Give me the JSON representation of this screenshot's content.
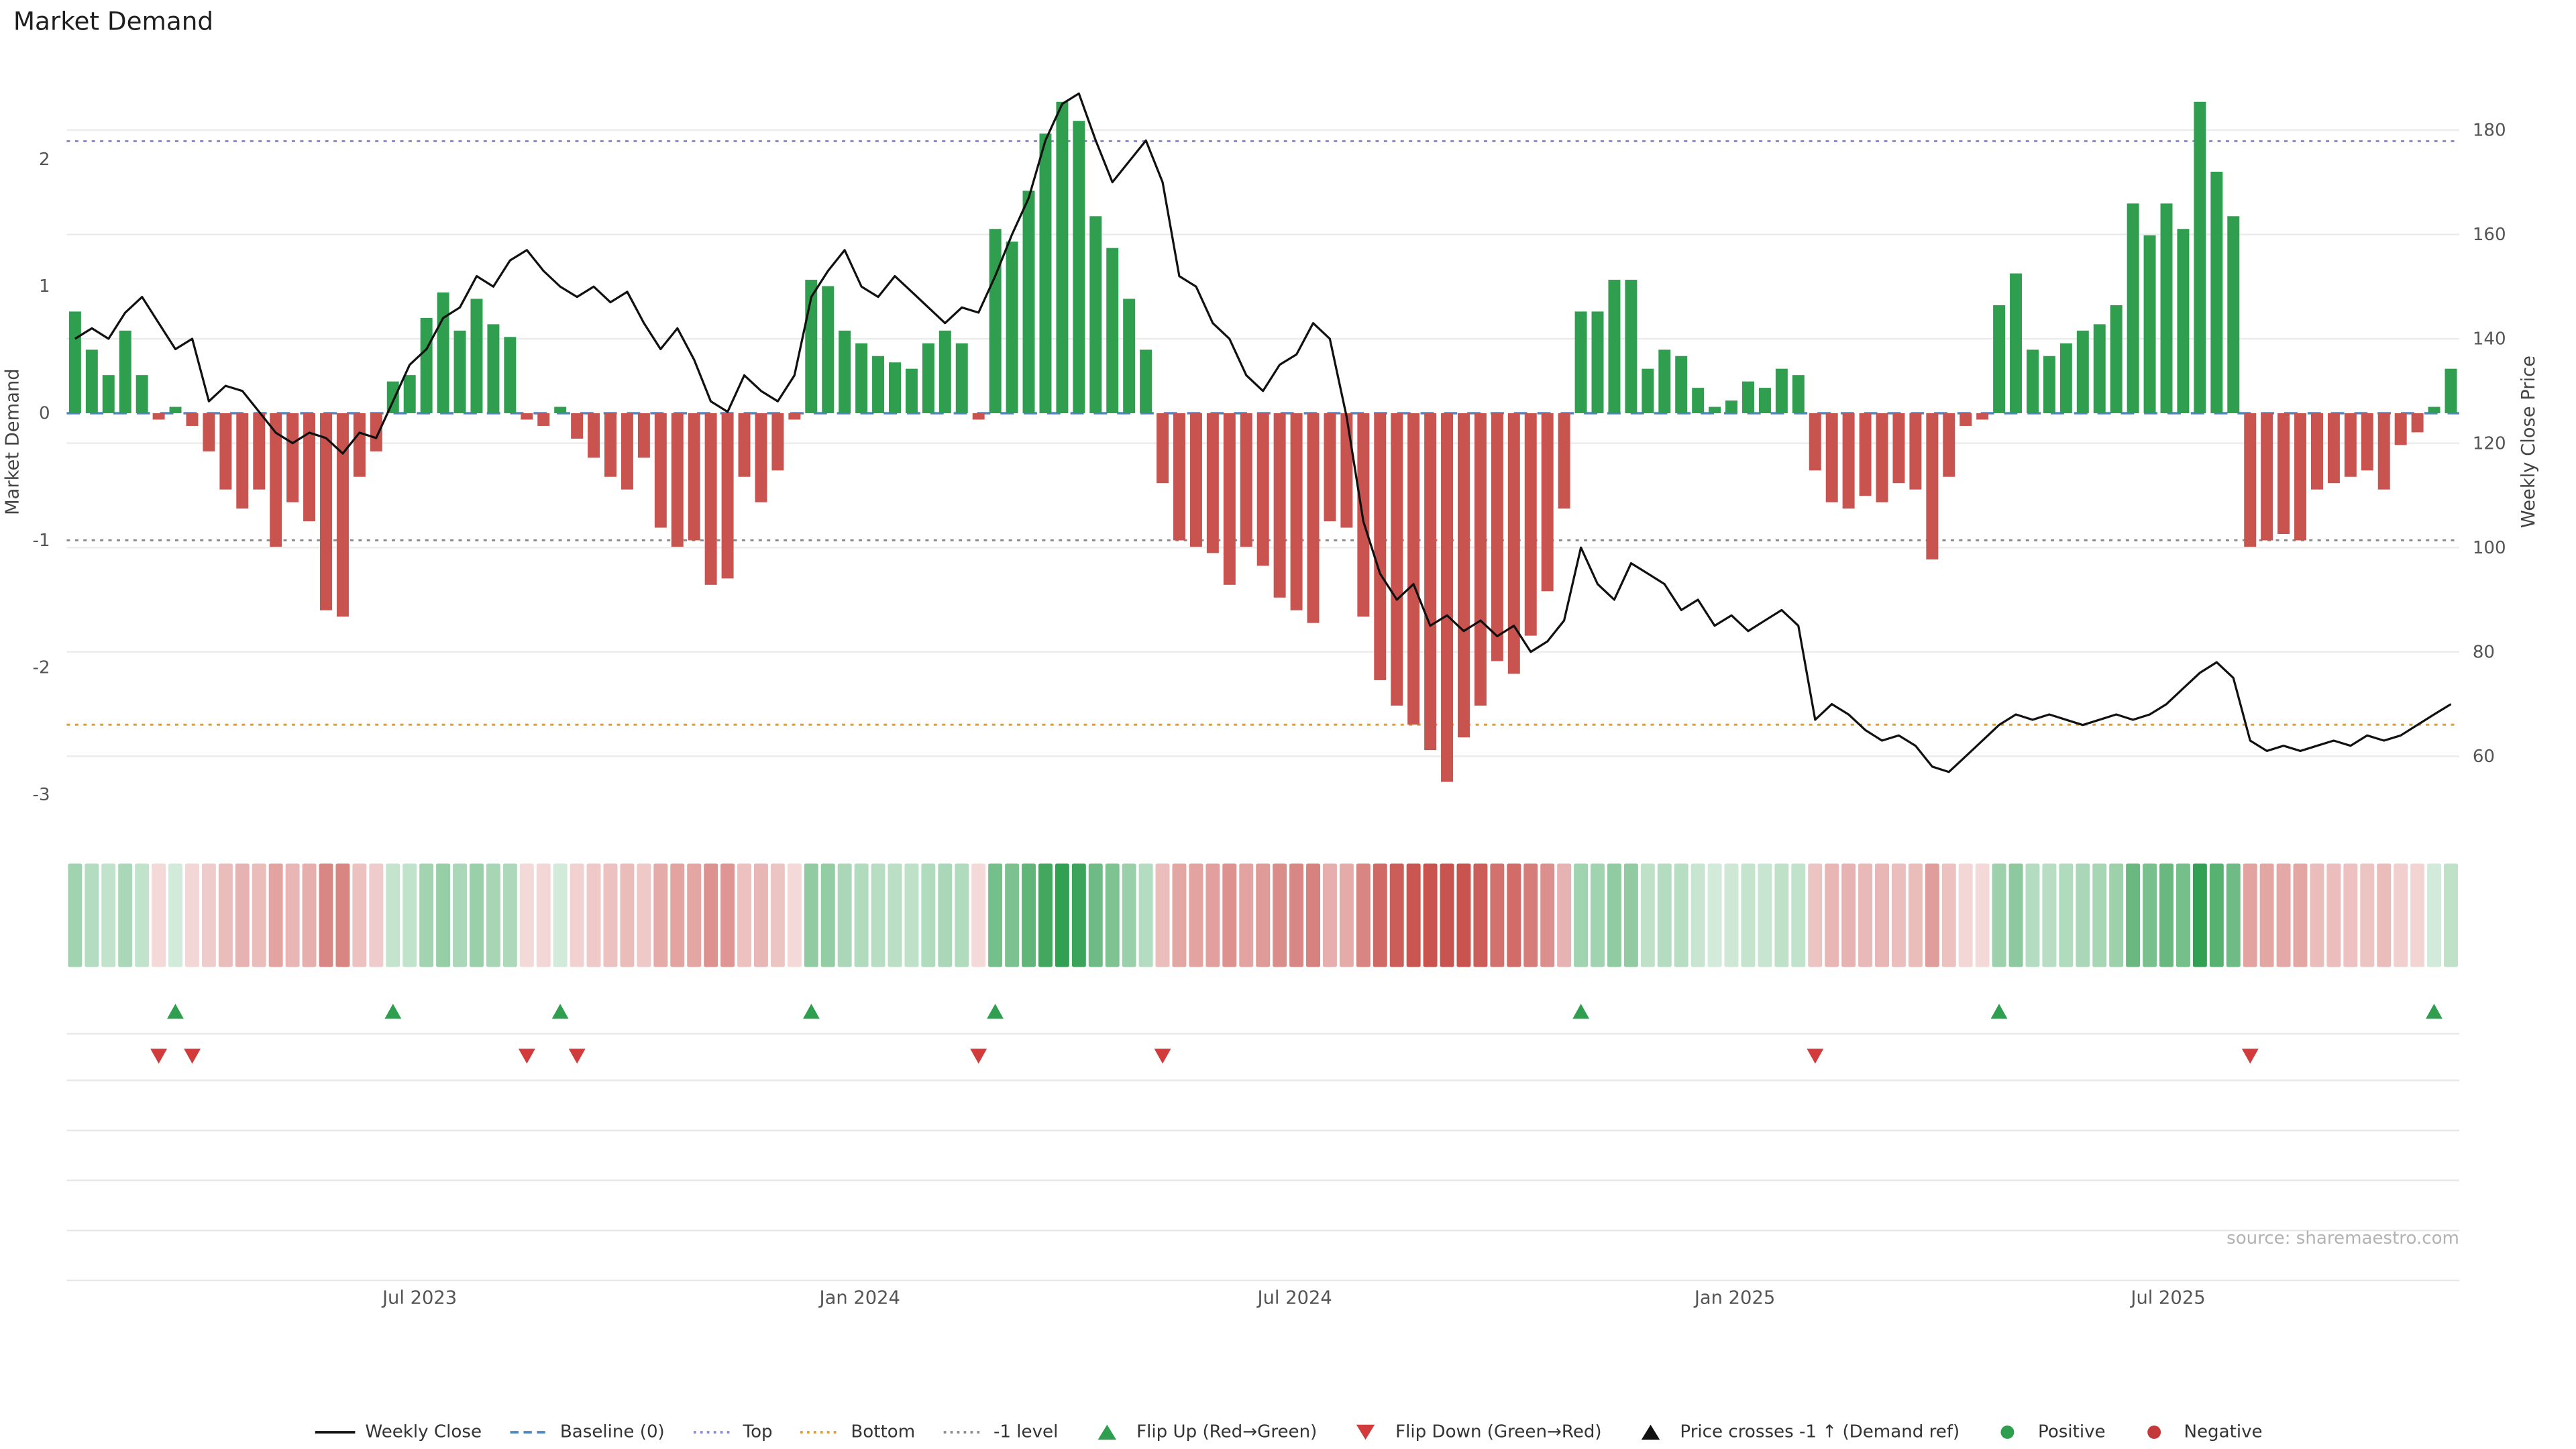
{
  "title": "Market Demand",
  "source": "source: sharemaestro.com",
  "colors": {
    "positive": "#2f9e4f",
    "negative": "#c9534f",
    "price_line": "#111111",
    "baseline": "#4f87c0",
    "top_line": "#8a8ad6",
    "bottom_line": "#e39b2d",
    "minus1_line": "#8c8c8c",
    "grid": "#ececec",
    "tick_text": "#555555",
    "source_text": "#b3b3b3",
    "flip_down": "#d13b3b",
    "negative_dot": "#c23a3a"
  },
  "chart_data": {
    "type": "bar",
    "description": "Weekly market-demand oscillator bars (left axis) with weekly close price line (right axis), sign/magnitude heatmap strip and flip markers",
    "title": "Market Demand",
    "start_date": "2023-02-03",
    "frequency": "weekly",
    "series": [
      {
        "name": "Market Demand",
        "type": "bar",
        "axis": "left",
        "values": [
          0.8,
          0.5,
          0.3,
          0.65,
          0.3,
          -0.05,
          0.05,
          -0.1,
          -0.3,
          -0.6,
          -0.75,
          -0.6,
          -1.05,
          -0.7,
          -0.85,
          -1.55,
          -1.6,
          -0.5,
          -0.3,
          0.25,
          0.3,
          0.75,
          0.95,
          0.65,
          0.9,
          0.7,
          0.6,
          -0.05,
          -0.1,
          0.05,
          -0.2,
          -0.35,
          -0.5,
          -0.6,
          -0.35,
          -0.9,
          -1.05,
          -1.0,
          -1.35,
          -1.3,
          -0.5,
          -0.7,
          -0.45,
          -0.05,
          1.05,
          1.0,
          0.65,
          0.55,
          0.45,
          0.4,
          0.35,
          0.55,
          0.65,
          0.55,
          -0.05,
          1.45,
          1.35,
          1.75,
          2.2,
          2.45,
          2.3,
          1.55,
          1.3,
          0.9,
          0.5,
          -0.55,
          -1.0,
          -1.05,
          -1.1,
          -1.35,
          -1.05,
          -1.2,
          -1.45,
          -1.55,
          -1.65,
          -0.85,
          -0.9,
          -1.6,
          -2.1,
          -2.3,
          -2.45,
          -2.65,
          -2.9,
          -2.55,
          -2.3,
          -1.95,
          -2.05,
          -1.75,
          -1.4,
          -0.75,
          0.8,
          0.8,
          1.05,
          1.05,
          0.35,
          0.5,
          0.45,
          0.2,
          0.05,
          0.1,
          0.25,
          0.2,
          0.35,
          0.3,
          -0.45,
          -0.7,
          -0.75,
          -0.65,
          -0.7,
          -0.55,
          -0.6,
          -1.15,
          -0.5,
          -0.1,
          -0.05,
          0.85,
          1.1,
          0.5,
          0.45,
          0.55,
          0.65,
          0.7,
          0.85,
          1.65,
          1.4,
          1.65,
          1.45,
          2.45,
          1.9,
          1.55,
          -1.05,
          -1.0,
          -0.95,
          -1.0,
          -0.6,
          -0.55,
          -0.5,
          -0.45,
          -0.6,
          -0.25,
          -0.15,
          0.05,
          0.35
        ]
      },
      {
        "name": "Weekly Close",
        "type": "line",
        "axis": "right",
        "values": [
          140,
          142,
          140,
          145,
          148,
          143,
          138,
          140,
          128,
          131,
          130,
          126,
          122,
          120,
          122,
          121,
          118,
          122,
          121,
          128,
          135,
          138,
          144,
          146,
          152,
          150,
          155,
          157,
          153,
          150,
          148,
          150,
          147,
          149,
          143,
          138,
          142,
          136,
          128,
          126,
          133,
          130,
          128,
          133,
          148,
          153,
          157,
          150,
          148,
          152,
          149,
          146,
          143,
          146,
          145,
          152,
          160,
          167,
          178,
          185,
          187,
          178,
          170,
          174,
          178,
          170,
          152,
          150,
          143,
          140,
          133,
          130,
          135,
          137,
          143,
          140,
          125,
          105,
          95,
          90,
          93,
          85,
          87,
          84,
          86,
          83,
          85,
          80,
          82,
          86,
          100,
          93,
          90,
          97,
          95,
          93,
          88,
          90,
          85,
          87,
          84,
          86,
          88,
          85,
          67,
          70,
          68,
          65,
          63,
          64,
          62,
          58,
          57,
          60,
          63,
          66,
          68,
          67,
          68,
          67,
          66,
          67,
          68,
          67,
          68,
          70,
          73,
          76,
          78,
          75,
          63,
          61,
          62,
          61,
          62,
          63,
          62,
          64,
          63,
          64,
          66,
          68,
          70
        ]
      }
    ],
    "levels": {
      "baseline": 0,
      "top": 2.14,
      "bottom": -2.45,
      "minus1_level": -1
    },
    "markers": {
      "flip_up_weeks": [
        6,
        19,
        29,
        44,
        55,
        90,
        115,
        141
      ],
      "flip_down_weeks": [
        5,
        7,
        27,
        30,
        54,
        65,
        104,
        130
      ],
      "price_cross_weeks": []
    },
    "heatmap": "derived from demand sign and magnitude (green positive, red negative)",
    "left_axis": {
      "label": "Market Demand",
      "ticks": [
        2,
        1,
        0,
        -1,
        -2,
        -3
      ],
      "range": [
        -3.15,
        2.7
      ]
    },
    "right_axis": {
      "label": "Weekly Close Price",
      "ticks": [
        180,
        160,
        140,
        120,
        100,
        80,
        60
      ],
      "range": [
        49,
        191.5
      ]
    },
    "x_axis": {
      "tick_labels": [
        "Jul 2023",
        "Jan 2024",
        "Jul 2024",
        "Jan 2025",
        "Jul 2025"
      ],
      "tick_weeks": [
        21.1,
        47.4,
        73.4,
        99.7,
        125.6
      ]
    }
  },
  "legend": {
    "items": [
      {
        "label": "Weekly Close",
        "glyph": "line",
        "color": "#111111"
      },
      {
        "label": "Baseline (0)",
        "glyph": "dashed-line",
        "color": "#4f87c0"
      },
      {
        "label": "Top",
        "glyph": "dotted-line",
        "color": "#8a8ad6"
      },
      {
        "label": "Bottom",
        "glyph": "dotted-line",
        "color": "#e39b2d"
      },
      {
        "label": "-1 level",
        "glyph": "dotted-line",
        "color": "#8c8c8c"
      },
      {
        "label": "Flip Up (Red→Green)",
        "glyph": "triangle-up",
        "color": "#2f9e4f"
      },
      {
        "label": "Flip Down (Green→Red)",
        "glyph": "triangle-down",
        "color": "#d13b3b"
      },
      {
        "label": "Price crosses -1 ↑ (Demand ref)",
        "glyph": "triangle-up",
        "color": "#111111"
      },
      {
        "label": "Positive",
        "glyph": "dot",
        "color": "#2f9e4f"
      },
      {
        "label": "Negative",
        "glyph": "dot",
        "color": "#c23a3a"
      }
    ]
  }
}
